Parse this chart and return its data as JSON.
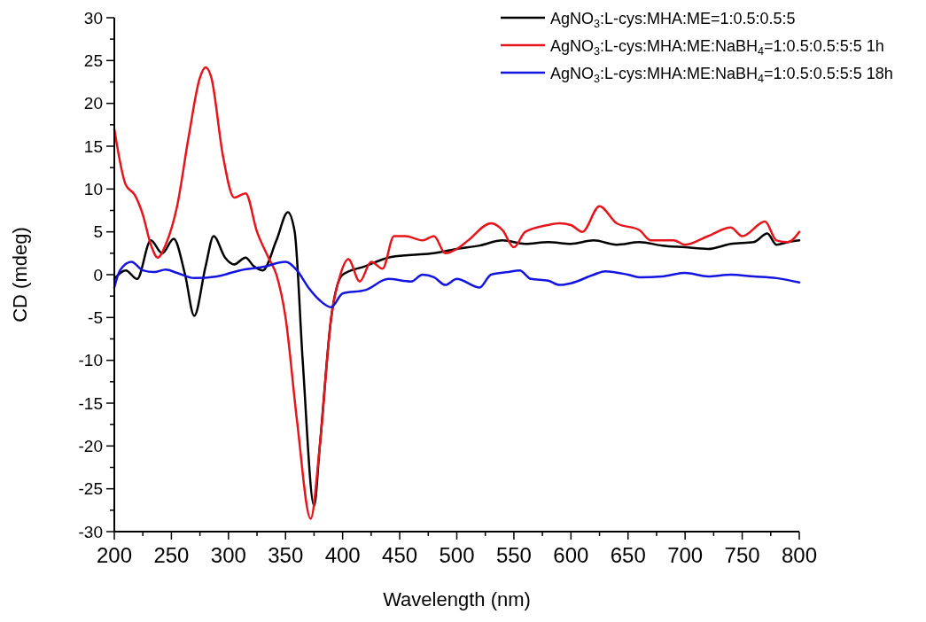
{
  "chart_data": {
    "type": "line",
    "xlabel": "Wavelength (nm)",
    "ylabel": "CD (mdeg)",
    "xlim": [
      200,
      800
    ],
    "ylim": [
      -30,
      30
    ],
    "xticks": [
      200,
      {
        "value": 225,
        "label": null
      },
      250,
      {
        "value": 275,
        "label": null
      },
      300,
      {
        "value": 325,
        "label": null
      },
      350,
      {
        "value": 375,
        "label": null
      },
      400,
      {
        "value": 425,
        "label": null
      },
      450,
      {
        "value": 475,
        "label": null
      },
      500,
      {
        "value": 525,
        "label": null
      },
      550,
      {
        "value": 575,
        "label": null
      },
      600,
      {
        "value": 625,
        "label": null
      },
      650,
      {
        "value": 675,
        "label": null
      },
      700,
      {
        "value": 725,
        "label": null
      },
      750,
      {
        "value": 775,
        "label": null
      },
      800
    ],
    "yticks": [
      -30,
      {
        "value": -27.5,
        "label": null
      },
      -25,
      {
        "value": -22.5,
        "label": null
      },
      -20,
      {
        "value": -17.5,
        "label": null
      },
      -15,
      {
        "value": -12.5,
        "label": null
      },
      -10,
      {
        "value": -7.5,
        "label": null
      },
      -5,
      {
        "value": -2.5,
        "label": null
      },
      0,
      {
        "value": 2.5,
        "label": null
      },
      5,
      {
        "value": 7.5,
        "label": null
      },
      10,
      {
        "value": 12.5,
        "label": null
      },
      15,
      {
        "value": 17.5,
        "label": null
      },
      20,
      {
        "value": 22.5,
        "label": null
      },
      25,
      {
        "value": 27.5,
        "label": null
      },
      30
    ],
    "grid": false,
    "legend": "top right",
    "line_style": "solid",
    "marker": "none",
    "series": [
      {
        "name": "AgNO$_{3}$:L-cys:MHA:ME=1:0.5:0.5:5",
        "color": "#000000",
        "x": [
          200,
          210,
          220,
          232,
          242,
          252,
          262,
          270,
          280,
          287,
          297,
          305,
          315,
          322,
          330,
          342,
          352,
          358,
          365,
          375,
          380,
          390,
          400,
          420,
          440,
          460,
          480,
          500,
          520,
          540,
          560,
          580,
          600,
          620,
          640,
          660,
          680,
          700,
          720,
          740,
          760,
          772,
          780,
          790,
          800
        ],
        "values": [
          -0.5,
          0.5,
          -0.5,
          4,
          2.5,
          4.2,
          0,
          -4.8,
          1,
          4.5,
          2,
          1.2,
          2,
          1,
          0.5,
          4,
          7.3,
          5,
          -10,
          -27,
          -20,
          -5,
          0,
          1,
          2,
          2.3,
          2.5,
          3,
          3.4,
          4,
          3.6,
          3.8,
          3.6,
          4,
          3.5,
          3.8,
          3.4,
          3.2,
          3,
          3.6,
          3.8,
          4.8,
          3.5,
          3.8,
          4
        ]
      },
      {
        "name": "AgNO$_{3}$:L-cys:MHA:ME:NaBH$_{4}$=1:0.5:0.5:5:5 1h",
        "color": "#e8141b",
        "x": [
          200,
          210,
          218,
          225,
          232,
          238,
          245,
          255,
          265,
          275,
          280,
          285,
          295,
          305,
          315,
          325,
          335,
          342,
          350,
          360,
          372,
          380,
          390,
          398,
          405,
          415,
          425,
          435,
          445,
          455,
          470,
          480,
          490,
          500,
          510,
          530,
          540,
          550,
          560,
          580,
          590,
          600,
          610,
          625,
          640,
          660,
          670,
          690,
          700,
          720,
          740,
          750,
          770,
          780,
          790,
          800
        ],
        "values": [
          17,
          10.5,
          9.3,
          7,
          3.5,
          2,
          3.5,
          8,
          16,
          23,
          24.2,
          23,
          14,
          9,
          9.5,
          5,
          2,
          0,
          -5,
          -17,
          -28.5,
          -20,
          -5,
          0,
          1.8,
          -0.8,
          1.5,
          0.7,
          4.5,
          4.5,
          4,
          4.5,
          2.5,
          3,
          4,
          6,
          5.2,
          3.2,
          5,
          5.8,
          6,
          5.8,
          5,
          8,
          6,
          5.2,
          4,
          4,
          3.5,
          4.5,
          5.5,
          4.5,
          6.2,
          4,
          3.8,
          5
        ]
      },
      {
        "name": "AgNO$_{3}$:L-cys:MHA:ME:NaBH$_{4}$=1:0.5:0.5:5:5 18h",
        "color": "#1414e0",
        "x": [
          200,
          205,
          215,
          225,
          235,
          245,
          255,
          270,
          290,
          310,
          330,
          350,
          360,
          370,
          380,
          390,
          400,
          420,
          440,
          460,
          470,
          480,
          490,
          500,
          520,
          530,
          545,
          555,
          565,
          580,
          590,
          600,
          620,
          630,
          650,
          660,
          680,
          700,
          720,
          740,
          760,
          780,
          800
        ],
        "values": [
          -1.5,
          0.5,
          1.5,
          0.5,
          0.3,
          0.6,
          0.2,
          -0.4,
          -0.2,
          0.5,
          0.9,
          1.5,
          0.5,
          -1.5,
          -3,
          -3.8,
          -2.2,
          -1.8,
          -0.5,
          -0.8,
          0,
          -0.3,
          -1.2,
          -0.5,
          -1.5,
          0,
          0.3,
          0.5,
          -0.5,
          -0.7,
          -1.2,
          -1,
          0,
          0.4,
          0,
          -0.3,
          -0.2,
          0.2,
          -0.2,
          0,
          -0.2,
          -0.4,
          -0.9
        ]
      }
    ]
  }
}
